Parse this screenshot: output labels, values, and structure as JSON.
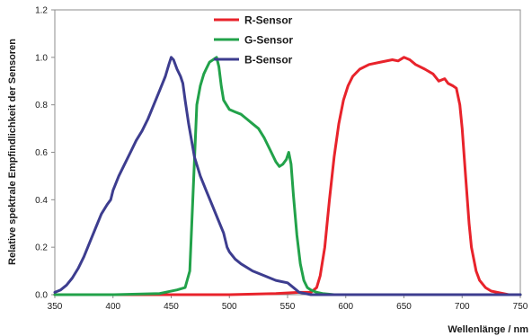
{
  "chart_data": {
    "type": "line",
    "title": "",
    "xlabel": "Wellenlänge / nm",
    "ylabel": "Relative spektrale Empfindlichkeit der Sensoren",
    "xlim": [
      350,
      750
    ],
    "ylim": [
      0,
      1.2
    ],
    "xticks": [
      "350",
      "400",
      "450",
      "500",
      "550",
      "600",
      "650",
      "700",
      "750"
    ],
    "yticks": [
      "0.0",
      "0.2",
      "0.4",
      "0.6",
      "0.8",
      "1.0",
      "1.2"
    ],
    "grid": false,
    "legend": "top-center",
    "series": [
      {
        "name": "R-Sensor",
        "color": "#e8232b",
        "x": [
          350,
          450,
          500,
          540,
          560,
          570,
          575,
          578,
          582,
          586,
          590,
          594,
          598,
          602,
          606,
          612,
          620,
          630,
          640,
          645,
          650,
          655,
          660,
          668,
          675,
          680,
          685,
          688,
          692,
          695,
          698,
          700,
          703,
          706,
          708,
          712,
          715,
          720,
          725,
          730,
          740,
          750
        ],
        "y": [
          0.0,
          0.0,
          0.0,
          0.005,
          0.01,
          0.01,
          0.03,
          0.08,
          0.2,
          0.4,
          0.58,
          0.72,
          0.82,
          0.88,
          0.92,
          0.95,
          0.97,
          0.98,
          0.99,
          0.985,
          1.0,
          0.99,
          0.97,
          0.95,
          0.93,
          0.9,
          0.91,
          0.89,
          0.88,
          0.87,
          0.8,
          0.7,
          0.5,
          0.3,
          0.2,
          0.1,
          0.06,
          0.03,
          0.015,
          0.01,
          0.0,
          0.0
        ]
      },
      {
        "name": "G-Sensor",
        "color": "#22a24a",
        "x": [
          350,
          400,
          440,
          455,
          462,
          466,
          469,
          472,
          475,
          478,
          480,
          483,
          486,
          489,
          491,
          493,
          495,
          500,
          505,
          510,
          515,
          520,
          525,
          530,
          535,
          540,
          543,
          546,
          549,
          551,
          553,
          555,
          558,
          561,
          564,
          567,
          570,
          575,
          580,
          590,
          600,
          750
        ],
        "y": [
          0.0,
          0.0,
          0.005,
          0.02,
          0.03,
          0.1,
          0.45,
          0.8,
          0.88,
          0.93,
          0.95,
          0.98,
          0.99,
          1.0,
          0.96,
          0.88,
          0.82,
          0.78,
          0.77,
          0.76,
          0.74,
          0.72,
          0.7,
          0.66,
          0.61,
          0.56,
          0.54,
          0.55,
          0.57,
          0.6,
          0.55,
          0.42,
          0.25,
          0.13,
          0.06,
          0.03,
          0.02,
          0.01,
          0.005,
          0.0,
          0.0,
          0.0
        ]
      },
      {
        "name": "B-Sensor",
        "color": "#3d3d8f",
        "x": [
          350,
          355,
          360,
          365,
          370,
          375,
          380,
          385,
          390,
          395,
          398,
          400,
          405,
          410,
          415,
          420,
          425,
          430,
          435,
          440,
          445,
          448,
          450,
          452,
          455,
          458,
          460,
          462,
          465,
          470,
          475,
          480,
          485,
          490,
          495,
          498,
          500,
          505,
          510,
          520,
          530,
          540,
          545,
          550,
          555,
          560,
          565,
          570,
          575,
          580,
          590,
          600,
          750
        ],
        "y": [
          0.01,
          0.02,
          0.04,
          0.07,
          0.11,
          0.16,
          0.22,
          0.28,
          0.34,
          0.38,
          0.4,
          0.44,
          0.5,
          0.55,
          0.6,
          0.65,
          0.69,
          0.74,
          0.8,
          0.86,
          0.92,
          0.97,
          1.0,
          0.99,
          0.95,
          0.92,
          0.89,
          0.82,
          0.72,
          0.58,
          0.5,
          0.44,
          0.38,
          0.32,
          0.26,
          0.2,
          0.18,
          0.15,
          0.13,
          0.1,
          0.08,
          0.06,
          0.055,
          0.05,
          0.03,
          0.01,
          0.005,
          0.0,
          0.0,
          0.0,
          0.0,
          0.0,
          0.0
        ]
      }
    ]
  }
}
